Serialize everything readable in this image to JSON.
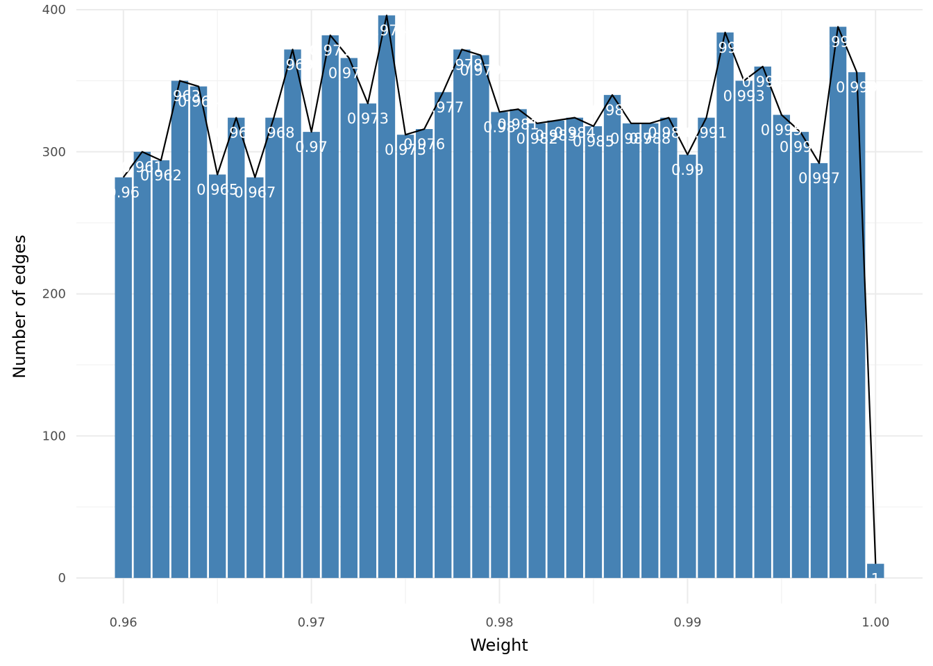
{
  "chart_data": {
    "type": "bar",
    "xlabel": "Weight",
    "ylabel": "Number of edges",
    "xlim": [
      0.9575,
      1.0025
    ],
    "ylim": [
      -18,
      400
    ],
    "x_ticks": [
      0.96,
      0.97,
      0.98,
      0.99,
      1.0
    ],
    "x_tick_labels": [
      "0.96",
      "0.97",
      "0.98",
      "0.99",
      "1.00"
    ],
    "y_ticks": [
      0,
      100,
      200,
      300,
      400
    ],
    "y_tick_labels": [
      "0",
      "100",
      "200",
      "300",
      "400"
    ],
    "grid": true,
    "bar_color": "#4682B4",
    "line_color": "#000000",
    "label_color": "#ffffff",
    "series": [
      {
        "x": [
          0.96,
          0.961,
          0.962,
          0.963,
          0.964,
          0.965,
          0.966,
          0.967,
          0.968,
          0.969,
          0.97,
          0.971,
          0.972,
          0.973,
          0.974,
          0.975,
          0.976,
          0.977,
          0.978,
          0.979,
          0.98,
          0.981,
          0.982,
          0.983,
          0.984,
          0.985,
          0.986,
          0.987,
          0.988,
          0.989,
          0.99,
          0.991,
          0.992,
          0.993,
          0.994,
          0.995,
          0.996,
          0.997,
          0.998,
          0.999,
          1.0
        ],
        "values": [
          282,
          300,
          294,
          350,
          346,
          284,
          324,
          282,
          324,
          372,
          314,
          382,
          366,
          334,
          396,
          312,
          316,
          342,
          372,
          368,
          328,
          330,
          320,
          322,
          324,
          318,
          340,
          320,
          320,
          324,
          298,
          324,
          384,
          350,
          360,
          326,
          314,
          292,
          388,
          356,
          10
        ],
        "labels": [
          "0.96",
          "0.961",
          "0.962",
          "0.963",
          "0.964",
          "0.965",
          "0.966",
          "0.967",
          "0.968",
          "0.969",
          "0.97",
          "0.971",
          "0.972",
          "0.973",
          "0.974",
          "0.975",
          "0.976",
          "0.977",
          "0.978",
          "0.979",
          "0.98",
          "0.981",
          "0.982",
          "0.983",
          "0.984",
          "0.985",
          "0.986",
          "0.987",
          "0.988",
          "0.989",
          "0.99",
          "0.991",
          "0.992",
          "0.993",
          "0.994",
          "0.995",
          "0.996",
          "0.997",
          "0.998",
          "0.999",
          "1"
        ]
      }
    ]
  }
}
